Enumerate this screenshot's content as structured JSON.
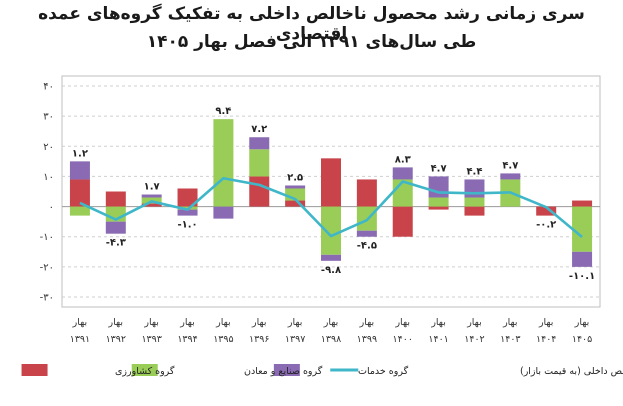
{
  "title": {
    "line1": "سری زمانی رشد محصول ناخالص داخلی به تفکیک گروه‌های عمده اقتصادی",
    "line2": "طی سال‌های ۱۳۹۱ الی فصل بهار ۱۴۰۵"
  },
  "chart_data": {
    "type": "bar",
    "stacked": true,
    "title": "سری زمانی رشد محصول ناخالص داخلی به تفکیک گروه‌های عمده اقتصادی طی سال‌های ۱۳۹۱ الی فصل بهار ۱۴۰۵",
    "ylim": [
      -30,
      40
    ],
    "yticks": [
      40,
      30,
      20,
      10,
      0,
      -10,
      -20,
      -30
    ],
    "ytick_labels": [
      "۴۰",
      "۳۰",
      "۲۰",
      "۱۰",
      "۰",
      "-۱۰",
      "-۲۰",
      "-۳۰"
    ],
    "grid": "horizontal",
    "legend_position": "bottom",
    "categories": [
      {
        "season": "بهار",
        "year": "۱۳۹۱"
      },
      {
        "season": "بهار",
        "year": "۱۳۹۲"
      },
      {
        "season": "بهار",
        "year": "۱۳۹۳"
      },
      {
        "season": "بهار",
        "year": "۱۳۹۴"
      },
      {
        "season": "بهار",
        "year": "۱۳۹۵"
      },
      {
        "season": "بهار",
        "year": "۱۳۹۶"
      },
      {
        "season": "بهار",
        "year": "۱۳۹۷"
      },
      {
        "season": "بهار",
        "year": "۱۳۹۸"
      },
      {
        "season": "بهار",
        "year": "۱۳۹۹"
      },
      {
        "season": "بهار",
        "year": "۱۴۰۰"
      },
      {
        "season": "بهار",
        "year": "۱۴۰۱"
      },
      {
        "season": "بهار",
        "year": "۱۴۰۲"
      },
      {
        "season": "بهار",
        "year": "۱۴۰۳"
      },
      {
        "season": "بهار",
        "year": "۱۴۰۴"
      },
      {
        "season": "بهار",
        "year": "۱۴۰۵"
      }
    ],
    "series": [
      {
        "name": "گروه کشاورزی",
        "color": "#C8444A",
        "values": [
          9,
          5,
          1,
          6,
          0,
          10,
          2,
          16,
          9,
          -10,
          -1,
          -3,
          0,
          -3,
          2
        ]
      },
      {
        "name": "گروه صنایع و معادن",
        "color": "#9ACD57",
        "values": [
          -3,
          -5,
          2,
          -1,
          29,
          9,
          4,
          -16,
          -8,
          9,
          3,
          3,
          9,
          0,
          -15
        ]
      },
      {
        "name": "گروه خدمات",
        "color": "#8A6BB3",
        "values": [
          6,
          -4,
          1,
          -2,
          -4,
          4,
          1,
          -2,
          -2,
          4,
          7,
          6,
          2,
          0,
          -5
        ]
      }
    ],
    "line": {
      "name": "محصول ناخالص داخلی (به قیمت بازار)",
      "color": "#3FB7C9",
      "values": [
        1.2,
        -4.3,
        1.7,
        -1.0,
        9.4,
        7.2,
        2.5,
        -9.8,
        -4.5,
        8.3,
        4.7,
        4.4,
        4.7,
        -0.2,
        -10.1
      ]
    },
    "data_labels": [
      "۱.۲",
      "-۴.۳",
      "۱.۷",
      "-۱.۰",
      "۹.۴",
      "۷.۲",
      "۲.۵",
      "-۹.۸",
      "-۴.۵",
      "۸.۳",
      "۴.۷",
      "۴.۴",
      "۴.۷",
      "-۰.۲",
      "-۱۰.۱"
    ]
  }
}
